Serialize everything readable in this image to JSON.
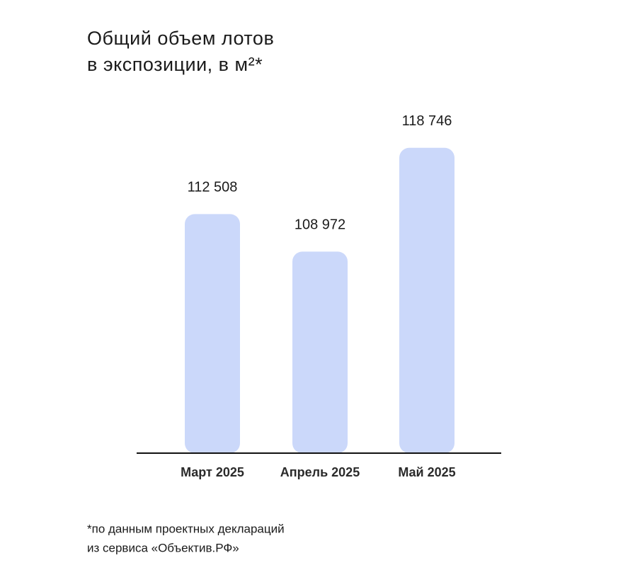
{
  "chart_data": {
    "type": "bar",
    "title": [
      "Общий объем лотов",
      "в экспозиции, в м²*"
    ],
    "categories": [
      "Март 2025",
      "Апрель 2025",
      "Май 2025"
    ],
    "values": [
      112508,
      108972,
      118746
    ],
    "value_labels": [
      "112 508",
      "108 972",
      "118 746"
    ],
    "color": "#cbd8fa",
    "ylim": [
      90000,
      120000
    ],
    "footnote": [
      "*по данным проектных деклараций",
      "из сервиса «Объектив.РФ»"
    ]
  }
}
